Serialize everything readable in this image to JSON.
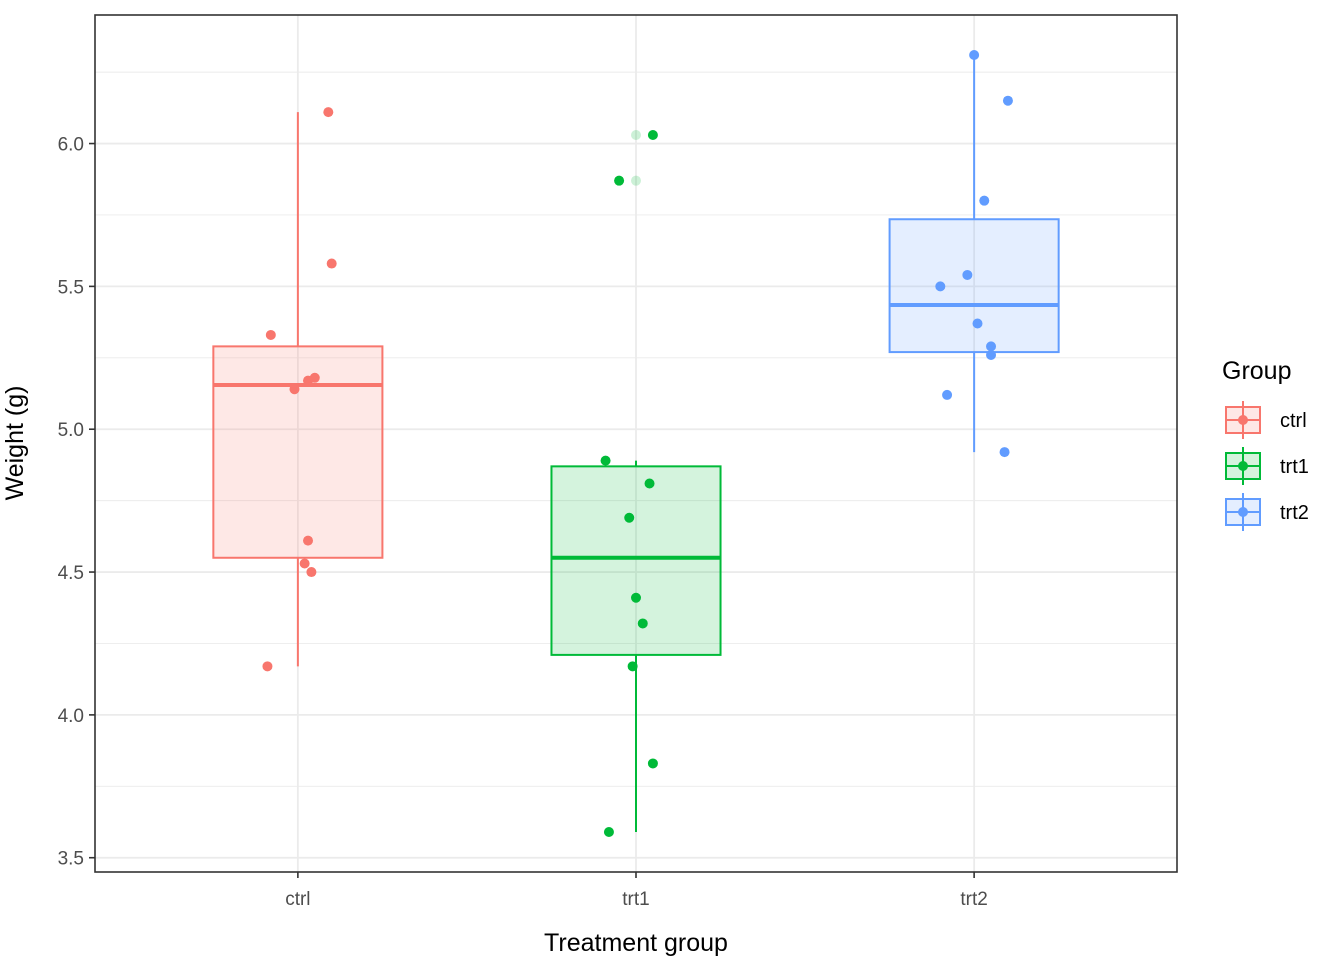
{
  "chart_data": {
    "type": "boxplot",
    "xlabel": "Treatment group",
    "ylabel": "Weight (g)",
    "ylim": [
      3.45,
      6.45
    ],
    "y_ticks": [
      3.5,
      4.0,
      4.5,
      5.0,
      5.5,
      6.0
    ],
    "y_tick_labels": [
      "3.5",
      "4.0",
      "4.5",
      "5.0",
      "5.5",
      "6.0"
    ],
    "categories": [
      "ctrl",
      "trt1",
      "trt2"
    ],
    "grid": true,
    "legend": {
      "title": "Group",
      "position": "right",
      "entries": [
        "ctrl",
        "trt1",
        "trt2"
      ]
    },
    "colors": {
      "ctrl": "#F8766D",
      "trt1": "#00BA38",
      "trt2": "#619CFF"
    },
    "series": [
      {
        "category": "ctrl",
        "box": {
          "whisker_low": 4.17,
          "q1": 4.55,
          "median": 5.155,
          "q3": 5.29,
          "whisker_high": 6.11
        },
        "outliers": [],
        "points": [
          {
            "x": -0.09,
            "y": 4.17
          },
          {
            "x": 0.04,
            "y": 4.5
          },
          {
            "x": 0.03,
            "y": 4.61
          },
          {
            "x": 0.02,
            "y": 4.53
          },
          {
            "x": -0.01,
            "y": 5.14
          },
          {
            "x": 0.03,
            "y": 5.17
          },
          {
            "x": 0.05,
            "y": 5.18
          },
          {
            "x": -0.08,
            "y": 5.33
          },
          {
            "x": 0.1,
            "y": 5.58
          },
          {
            "x": 0.09,
            "y": 6.11
          }
        ]
      },
      {
        "category": "trt1",
        "box": {
          "whisker_low": 3.59,
          "q1": 4.21,
          "median": 4.55,
          "q3": 4.87,
          "whisker_high": 4.89
        },
        "outliers": [
          5.87,
          6.03
        ],
        "points": [
          {
            "x": -0.08,
            "y": 3.59
          },
          {
            "x": 0.05,
            "y": 3.83
          },
          {
            "x": -0.01,
            "y": 4.17
          },
          {
            "x": 0.02,
            "y": 4.32
          },
          {
            "x": 0.0,
            "y": 4.41
          },
          {
            "x": -0.02,
            "y": 4.69
          },
          {
            "x": 0.04,
            "y": 4.81
          },
          {
            "x": -0.09,
            "y": 4.89
          },
          {
            "x": -0.05,
            "y": 5.87
          },
          {
            "x": 0.05,
            "y": 6.03
          }
        ]
      },
      {
        "category": "trt2",
        "box": {
          "whisker_low": 4.92,
          "q1": 5.27,
          "median": 5.435,
          "q3": 5.735,
          "whisker_high": 6.31
        },
        "outliers": [],
        "points": [
          {
            "x": 0.09,
            "y": 4.92
          },
          {
            "x": -0.08,
            "y": 5.12
          },
          {
            "x": 0.05,
            "y": 5.26
          },
          {
            "x": 0.05,
            "y": 5.29
          },
          {
            "x": 0.01,
            "y": 5.37
          },
          {
            "x": -0.1,
            "y": 5.5
          },
          {
            "x": -0.02,
            "y": 5.54
          },
          {
            "x": 0.03,
            "y": 5.8
          },
          {
            "x": 0.1,
            "y": 6.15
          },
          {
            "x": 0.0,
            "y": 6.31
          }
        ]
      }
    ]
  }
}
